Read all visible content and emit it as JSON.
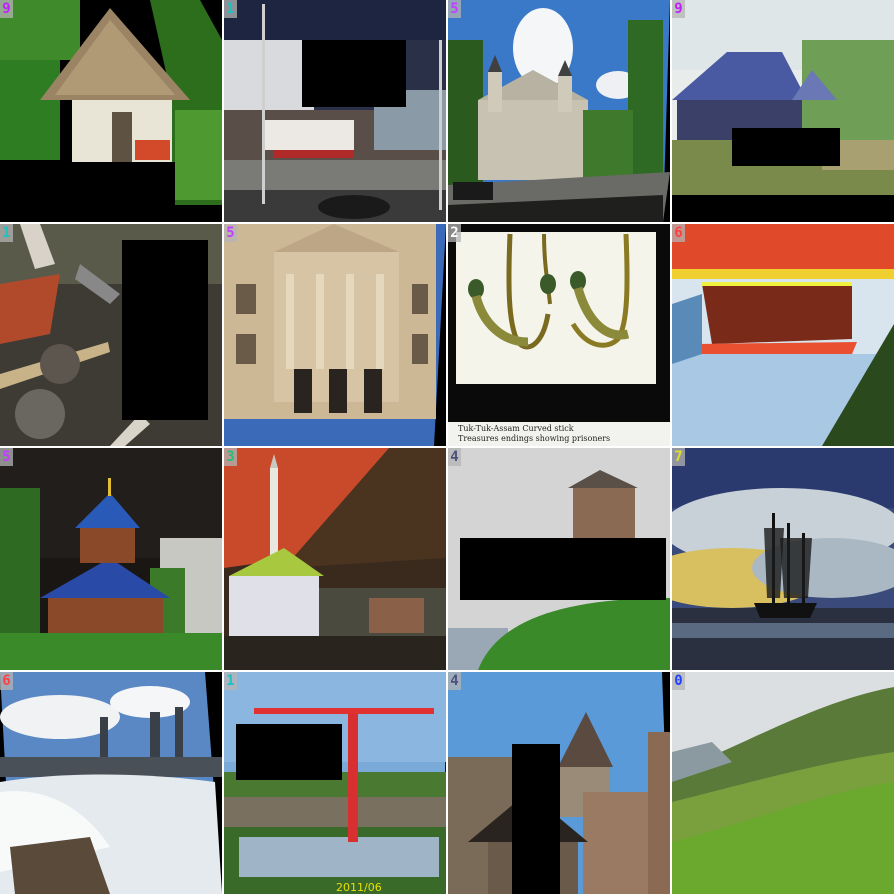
{
  "tiles": [
    {
      "label": "9",
      "label_color": "#c020ff",
      "scene": "thatched-hut"
    },
    {
      "label": "1",
      "label_color": "#20c0c0",
      "scene": "harbor-boats"
    },
    {
      "label": "5",
      "label_color": "#c040ff",
      "scene": "baroque-church"
    },
    {
      "label": "9",
      "label_color": "#c020ff",
      "scene": "thatched-barn"
    },
    {
      "label": "1",
      "label_color": "#20c0c0",
      "scene": "construction-debris"
    },
    {
      "label": "5",
      "label_color": "#c040ff",
      "scene": "classical-facade"
    },
    {
      "label": "2",
      "label_color": "#ffffff",
      "scene": "carved-stick-figures",
      "caption_line1": "Tuk-Tuk-Assam Curved stick",
      "caption_line2": "Treasures  endings showing prisoners"
    },
    {
      "label": "6",
      "label_color": "#ff4040",
      "scene": "waterfall-solarized"
    },
    {
      "label": "5",
      "label_color": "#c040ff",
      "scene": "wooden-church"
    },
    {
      "label": "3",
      "label_color": "#20c080",
      "scene": "mosque-solarized"
    },
    {
      "label": "4",
      "label_color": "#505080",
      "scene": "castle-tower"
    },
    {
      "label": "7",
      "label_color": "#e0e020",
      "scene": "tall-ship"
    },
    {
      "label": "6",
      "label_color": "#ff4040",
      "scene": "niagara-falls"
    },
    {
      "label": "1",
      "label_color": "#20c0c0",
      "scene": "red-crane",
      "date_stamp": "2011/06"
    },
    {
      "label": "4",
      "label_color": "#505080",
      "scene": "fortress-towers"
    },
    {
      "label": "0",
      "label_color": "#2040ff",
      "scene": "green-hills"
    }
  ]
}
